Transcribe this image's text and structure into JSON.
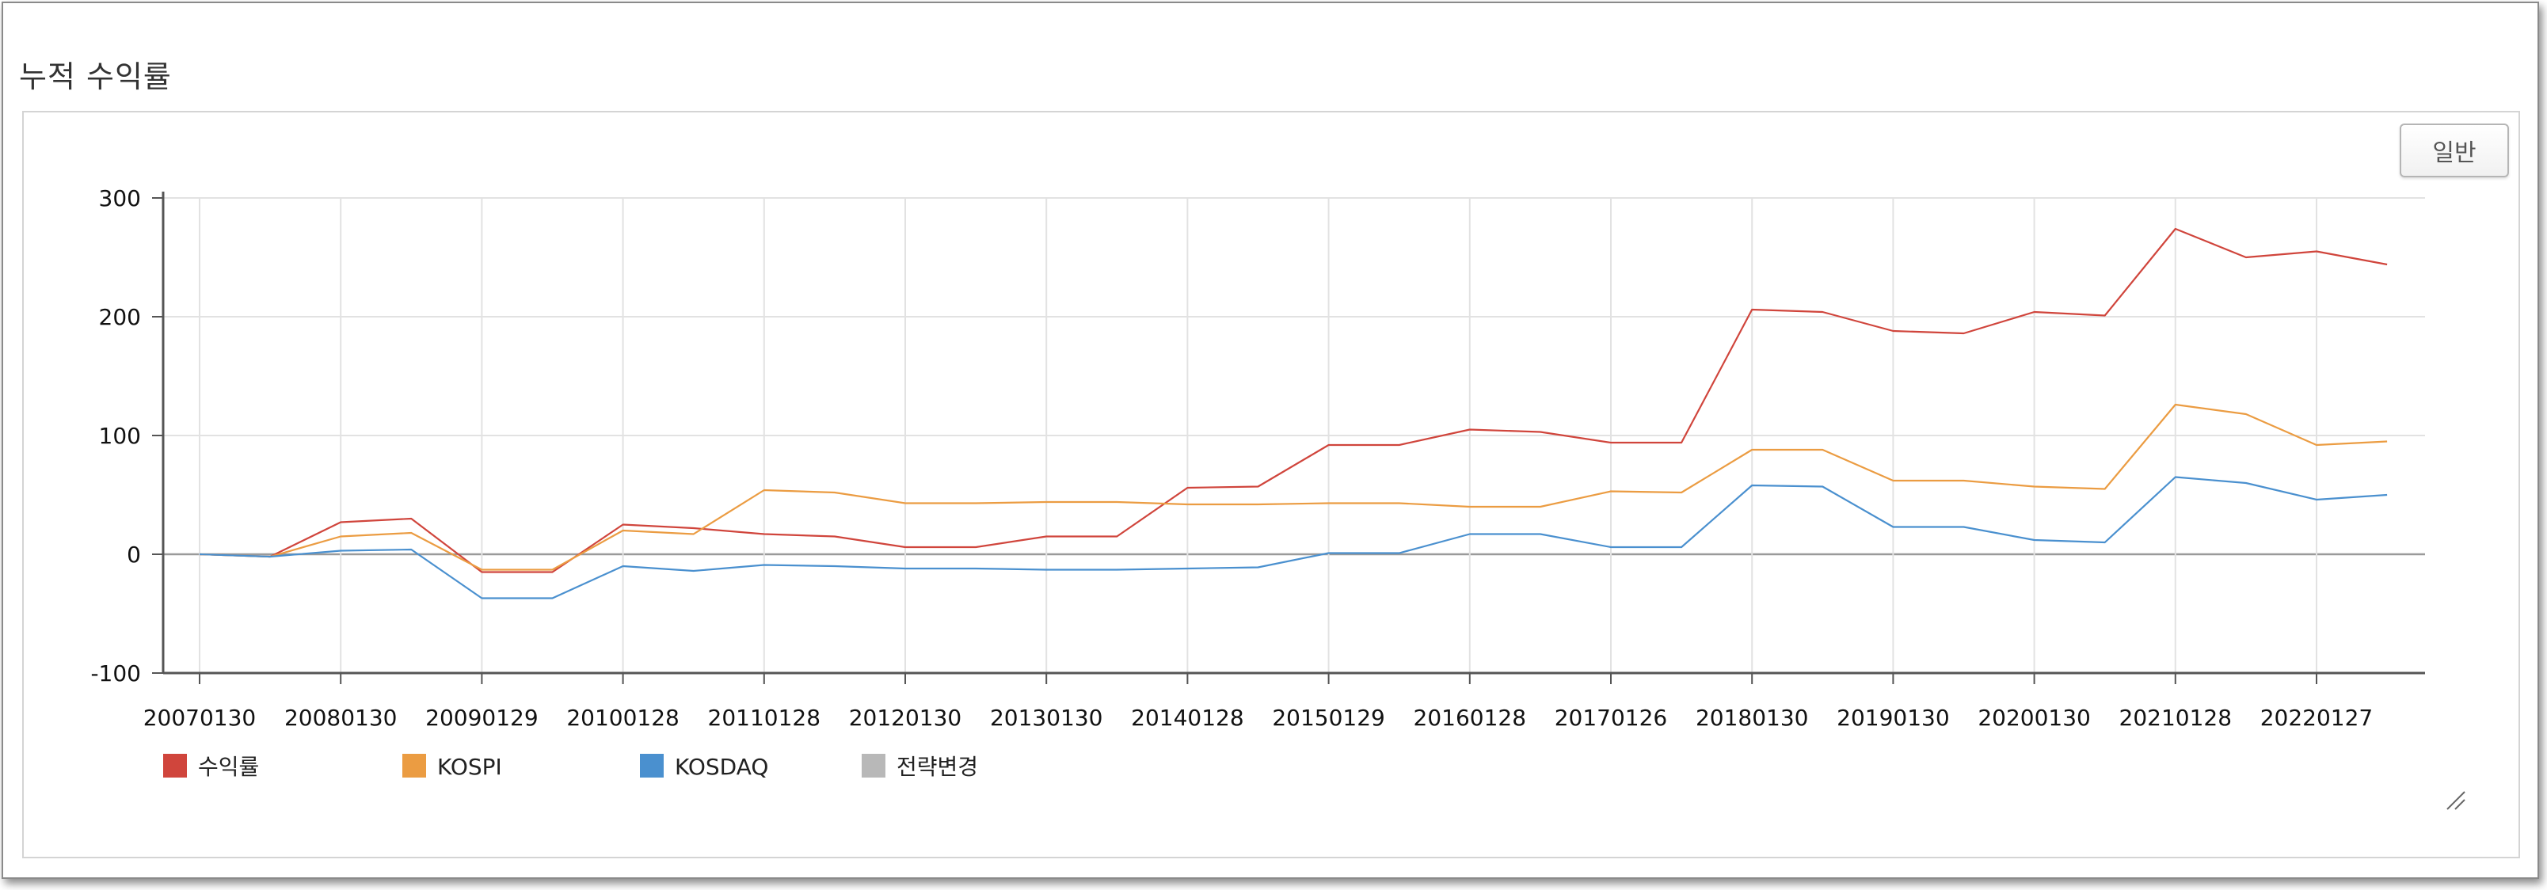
{
  "section_title": "누적 수익률",
  "mode_button_label": "일반",
  "chart_data": {
    "type": "line",
    "y_ticks": [
      300,
      200,
      100,
      0,
      -100
    ],
    "ylim": [
      -100,
      300
    ],
    "x_tick_labels": [
      "20070130",
      "20080130",
      "20090129",
      "20100128",
      "20110128",
      "20120130",
      "20130130",
      "20140128",
      "20150129",
      "20160128",
      "20170126",
      "20180130",
      "20190130",
      "20200130",
      "20210128",
      "20220127"
    ],
    "x_index_range": [
      0,
      31
    ],
    "grid": true,
    "legend_position": "bottom-left",
    "series": [
      {
        "name": "수익률",
        "color": "#d0453c",
        "values": [
          0,
          -2,
          27,
          30,
          -15,
          -15,
          25,
          22,
          17,
          15,
          6,
          6,
          15,
          15,
          56,
          57,
          92,
          92,
          105,
          103,
          94,
          94,
          206,
          204,
          188,
          186,
          204,
          201,
          274,
          250,
          255,
          244
        ]
      },
      {
        "name": "KOSPI",
        "color": "#eb9c42",
        "values": [
          0,
          -2,
          15,
          18,
          -13,
          -13,
          20,
          17,
          54,
          52,
          43,
          43,
          44,
          44,
          42,
          42,
          43,
          43,
          40,
          40,
          53,
          52,
          88,
          88,
          62,
          62,
          57,
          55,
          126,
          118,
          92,
          95
        ]
      },
      {
        "name": "KOSDAQ",
        "color": "#4a90cf",
        "values": [
          0,
          -2,
          3,
          4,
          -37,
          -37,
          -10,
          -14,
          -9,
          -10,
          -12,
          -12,
          -13,
          -13,
          -12,
          -11,
          1,
          1,
          17,
          17,
          6,
          6,
          58,
          57,
          23,
          23,
          12,
          10,
          65,
          60,
          46,
          50
        ]
      },
      {
        "name": "전략변경",
        "color": "#b8b8b8",
        "values": []
      }
    ]
  }
}
